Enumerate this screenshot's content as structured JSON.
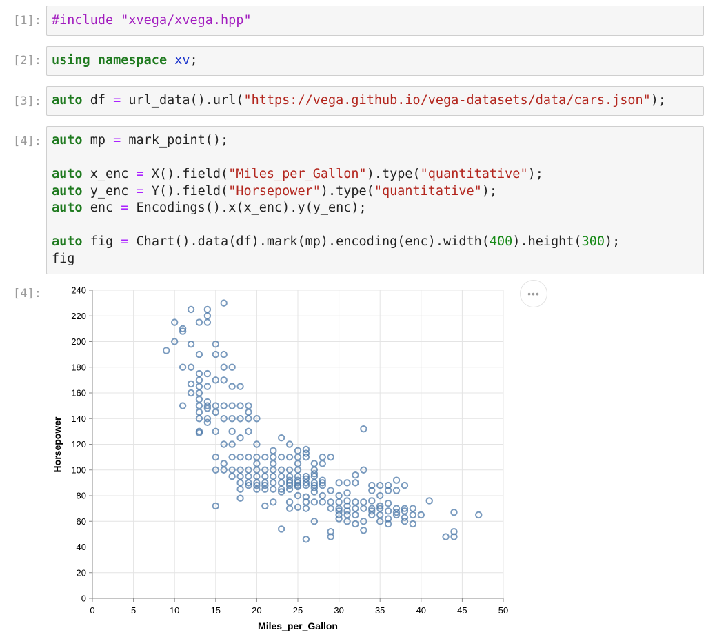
{
  "cells": [
    {
      "prompt": "[1]:",
      "code": "#include \"xvega/xvega.hpp\""
    },
    {
      "prompt": "[2]:",
      "code": "using namespace xv;"
    },
    {
      "prompt": "[3]:",
      "code": "auto df = url_data().url(\"https://vega.github.io/vega-datasets/data/cars.json\");"
    },
    {
      "prompt": "[4]:",
      "code": [
        "auto mp = mark_point();",
        "",
        "auto x_enc = X().field(\"Miles_per_Gallon\").type(\"quantitative\");",
        "auto y_enc = Y().field(\"Horsepower\").type(\"quantitative\");",
        "auto enc = Encodings().x(x_enc).y(y_enc);",
        "",
        "auto fig = Chart().data(df).mark(mp).encoding(enc).width(400).height(300);",
        "fig"
      ]
    }
  ],
  "output": {
    "prompt": "[4]:",
    "more_icon": "ellipsis-icon",
    "more_label": "•••"
  },
  "chart_data": {
    "type": "scatter",
    "xlabel": "Miles_per_Gallon",
    "ylabel": "Horsepower",
    "xlim": [
      0,
      50
    ],
    "ylim": [
      0,
      240
    ],
    "xticks": [
      0,
      5,
      10,
      15,
      20,
      25,
      30,
      35,
      40,
      45,
      50
    ],
    "yticks": [
      0,
      20,
      40,
      60,
      80,
      100,
      120,
      140,
      160,
      180,
      200,
      220,
      240
    ],
    "grid": true,
    "marker": "hollow-circle",
    "color": "#4c78a8",
    "points": [
      [
        9,
        193
      ],
      [
        10,
        215
      ],
      [
        10,
        200
      ],
      [
        11,
        210
      ],
      [
        11,
        208
      ],
      [
        11,
        180
      ],
      [
        11,
        150
      ],
      [
        12,
        225
      ],
      [
        12,
        198
      ],
      [
        12,
        180
      ],
      [
        12,
        167
      ],
      [
        12,
        160
      ],
      [
        13,
        215
      ],
      [
        13,
        190
      ],
      [
        13,
        175
      ],
      [
        13,
        170
      ],
      [
        13,
        165
      ],
      [
        13,
        160
      ],
      [
        13,
        155
      ],
      [
        13,
        150
      ],
      [
        13,
        145
      ],
      [
        13,
        140
      ],
      [
        13,
        130
      ],
      [
        13,
        129
      ],
      [
        14,
        225
      ],
      [
        14,
        220
      ],
      [
        14,
        215
      ],
      [
        14,
        175
      ],
      [
        14,
        165
      ],
      [
        14,
        153
      ],
      [
        14,
        150
      ],
      [
        14,
        148
      ],
      [
        14,
        140
      ],
      [
        14,
        137
      ],
      [
        15,
        198
      ],
      [
        15,
        190
      ],
      [
        15,
        170
      ],
      [
        15,
        150
      ],
      [
        15,
        145
      ],
      [
        15,
        130
      ],
      [
        15,
        110
      ],
      [
        15,
        100
      ],
      [
        15,
        72
      ],
      [
        16,
        230
      ],
      [
        16,
        190
      ],
      [
        16,
        180
      ],
      [
        16,
        170
      ],
      [
        16,
        150
      ],
      [
        16,
        140
      ],
      [
        16,
        120
      ],
      [
        16,
        105
      ],
      [
        16,
        100
      ],
      [
        17,
        180
      ],
      [
        17,
        165
      ],
      [
        17,
        150
      ],
      [
        17,
        140
      ],
      [
        17,
        130
      ],
      [
        17,
        120
      ],
      [
        17,
        110
      ],
      [
        17,
        100
      ],
      [
        17,
        95
      ],
      [
        18,
        165
      ],
      [
        18,
        150
      ],
      [
        18,
        140
      ],
      [
        18,
        125
      ],
      [
        18,
        110
      ],
      [
        18,
        100
      ],
      [
        18,
        95
      ],
      [
        18,
        90
      ],
      [
        18,
        85
      ],
      [
        18,
        78
      ],
      [
        19,
        150
      ],
      [
        19,
        145
      ],
      [
        19,
        140
      ],
      [
        19,
        130
      ],
      [
        19,
        110
      ],
      [
        19,
        100
      ],
      [
        19,
        95
      ],
      [
        19,
        90
      ],
      [
        19,
        88
      ],
      [
        20,
        140
      ],
      [
        20,
        120
      ],
      [
        20,
        110
      ],
      [
        20,
        105
      ],
      [
        20,
        100
      ],
      [
        20,
        95
      ],
      [
        20,
        90
      ],
      [
        20,
        88
      ],
      [
        20,
        85
      ],
      [
        21,
        110
      ],
      [
        21,
        100
      ],
      [
        21,
        95
      ],
      [
        21,
        90
      ],
      [
        21,
        88
      ],
      [
        21,
        85
      ],
      [
        21,
        72
      ],
      [
        22,
        115
      ],
      [
        22,
        110
      ],
      [
        22,
        105
      ],
      [
        22,
        100
      ],
      [
        22,
        95
      ],
      [
        22,
        90
      ],
      [
        22,
        85
      ],
      [
        22,
        75
      ],
      [
        23,
        125
      ],
      [
        23,
        110
      ],
      [
        23,
        100
      ],
      [
        23,
        95
      ],
      [
        23,
        90
      ],
      [
        23,
        85
      ],
      [
        23,
        83
      ],
      [
        23,
        54
      ],
      [
        24,
        120
      ],
      [
        24,
        110
      ],
      [
        24,
        100
      ],
      [
        24,
        95
      ],
      [
        24,
        92
      ],
      [
        24,
        90
      ],
      [
        24,
        88
      ],
      [
        24,
        85
      ],
      [
        24,
        75
      ],
      [
        24,
        70
      ],
      [
        25,
        115
      ],
      [
        25,
        110
      ],
      [
        25,
        105
      ],
      [
        25,
        100
      ],
      [
        25,
        95
      ],
      [
        25,
        92
      ],
      [
        25,
        90
      ],
      [
        25,
        88
      ],
      [
        25,
        87
      ],
      [
        25,
        80
      ],
      [
        25,
        71
      ],
      [
        26,
        116
      ],
      [
        26,
        113
      ],
      [
        26,
        110
      ],
      [
        26,
        95
      ],
      [
        26,
        93
      ],
      [
        26,
        90
      ],
      [
        26,
        88
      ],
      [
        26,
        79
      ],
      [
        26,
        75
      ],
      [
        26,
        70
      ],
      [
        26,
        46
      ],
      [
        27,
        105
      ],
      [
        27,
        100
      ],
      [
        27,
        97
      ],
      [
        27,
        95
      ],
      [
        27,
        90
      ],
      [
        27,
        88
      ],
      [
        27,
        86
      ],
      [
        27,
        83
      ],
      [
        27,
        75
      ],
      [
        27,
        60
      ],
      [
        28,
        110
      ],
      [
        28,
        105
      ],
      [
        28,
        92
      ],
      [
        28,
        90
      ],
      [
        28,
        88
      ],
      [
        28,
        80
      ],
      [
        28,
        75
      ],
      [
        29,
        110
      ],
      [
        29,
        84
      ],
      [
        29,
        75
      ],
      [
        29,
        70
      ],
      [
        29,
        52
      ],
      [
        29,
        48
      ],
      [
        30,
        90
      ],
      [
        30,
        80
      ],
      [
        30,
        75
      ],
      [
        30,
        70
      ],
      [
        30,
        68
      ],
      [
        30,
        65
      ],
      [
        30,
        62
      ],
      [
        31,
        90
      ],
      [
        31,
        82
      ],
      [
        31,
        76
      ],
      [
        31,
        72
      ],
      [
        31,
        68
      ],
      [
        31,
        65
      ],
      [
        31,
        60
      ],
      [
        32,
        96
      ],
      [
        32,
        90
      ],
      [
        32,
        75
      ],
      [
        32,
        70
      ],
      [
        32,
        65
      ],
      [
        32,
        58
      ],
      [
        33,
        132
      ],
      [
        33,
        100
      ],
      [
        33,
        75
      ],
      [
        33,
        70
      ],
      [
        33,
        60
      ],
      [
        33,
        53
      ],
      [
        34,
        88
      ],
      [
        34,
        84
      ],
      [
        34,
        76
      ],
      [
        34,
        70
      ],
      [
        34,
        68
      ],
      [
        34,
        65
      ],
      [
        35,
        88
      ],
      [
        35,
        80
      ],
      [
        35,
        72
      ],
      [
        35,
        70
      ],
      [
        35,
        65
      ],
      [
        35,
        60
      ],
      [
        36,
        88
      ],
      [
        36,
        84
      ],
      [
        36,
        74
      ],
      [
        36,
        68
      ],
      [
        36,
        62
      ],
      [
        36,
        58
      ],
      [
        37,
        92
      ],
      [
        37,
        84
      ],
      [
        37,
        70
      ],
      [
        37,
        67
      ],
      [
        37,
        65
      ],
      [
        38,
        88
      ],
      [
        38,
        70
      ],
      [
        38,
        68
      ],
      [
        38,
        63
      ],
      [
        38,
        60
      ],
      [
        39,
        70
      ],
      [
        39,
        65
      ],
      [
        39,
        58
      ],
      [
        40,
        65
      ],
      [
        41,
        76
      ],
      [
        43,
        48
      ],
      [
        44,
        52
      ],
      [
        44,
        48
      ],
      [
        44,
        67
      ],
      [
        47,
        65
      ]
    ]
  }
}
